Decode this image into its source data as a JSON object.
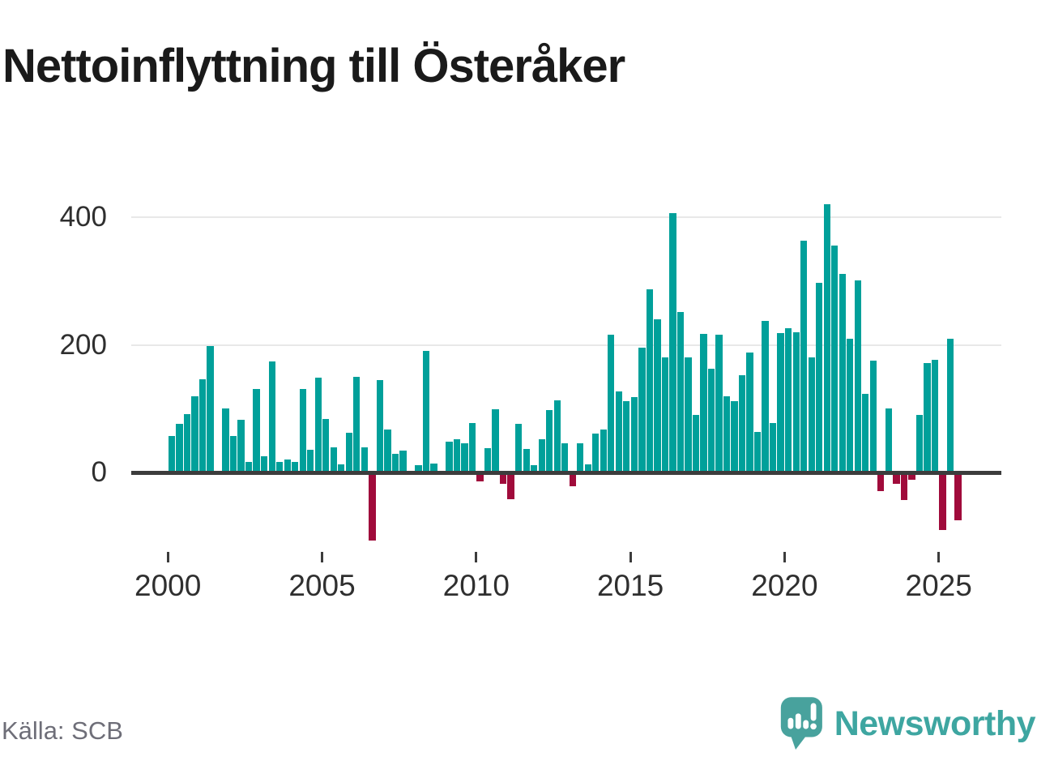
{
  "title": "Nettoinflyttning till Österåker",
  "source": "Källa: SCB",
  "branding": {
    "logo_text": "Newsworthy"
  },
  "colors": {
    "positive_bar": "#00A09A",
    "negative_bar": "#A00B3B",
    "axis": "#3C3C3C",
    "gridline": "#E8E8E8",
    "title_text": "#1A1A1A",
    "tick_text": "#2F2F2F",
    "source_text": "#6E6E78",
    "brand_teal": "#3EA6A1"
  },
  "chart_data": {
    "type": "bar",
    "title": "Nettoinflyttning till Österåker",
    "xlabel": "",
    "ylabel": "",
    "frequency": "quarterly",
    "start_period": "2000Q1",
    "end_period": "2025Q3",
    "grid": "horizontal",
    "legend_position": "none",
    "ylim": [
      -130,
      440
    ],
    "y_ticks": [
      {
        "value": 0,
        "label": "0"
      },
      {
        "value": 200,
        "label": "200"
      },
      {
        "value": 400,
        "label": "400"
      }
    ],
    "x_ticks": [
      {
        "value": 2000,
        "label": "2000"
      },
      {
        "value": 2005,
        "label": "2005"
      },
      {
        "value": 2010,
        "label": "2010"
      },
      {
        "value": 2015,
        "label": "2015"
      },
      {
        "value": 2020,
        "label": "2020"
      },
      {
        "value": 2025,
        "label": "2025"
      }
    ],
    "categories": [
      "2000Q1",
      "2000Q2",
      "2000Q3",
      "2000Q4",
      "2001Q1",
      "2001Q2",
      "2001Q3",
      "2001Q4",
      "2002Q1",
      "2002Q2",
      "2002Q3",
      "2002Q4",
      "2003Q1",
      "2003Q2",
      "2003Q3",
      "2003Q4",
      "2004Q1",
      "2004Q2",
      "2004Q3",
      "2004Q4",
      "2005Q1",
      "2005Q2",
      "2005Q3",
      "2005Q4",
      "2006Q1",
      "2006Q2",
      "2006Q3",
      "2006Q4",
      "2007Q1",
      "2007Q2",
      "2007Q3",
      "2007Q4",
      "2008Q1",
      "2008Q2",
      "2008Q3",
      "2008Q4",
      "2009Q1",
      "2009Q2",
      "2009Q3",
      "2009Q4",
      "2010Q1",
      "2010Q2",
      "2010Q3",
      "2010Q4",
      "2011Q1",
      "2011Q2",
      "2011Q3",
      "2011Q4",
      "2012Q1",
      "2012Q2",
      "2012Q3",
      "2012Q4",
      "2013Q1",
      "2013Q2",
      "2013Q3",
      "2013Q4",
      "2014Q1",
      "2014Q2",
      "2014Q3",
      "2014Q4",
      "2015Q1",
      "2015Q2",
      "2015Q3",
      "2015Q4",
      "2016Q1",
      "2016Q2",
      "2016Q3",
      "2016Q4",
      "2017Q1",
      "2017Q2",
      "2017Q3",
      "2017Q4",
      "2018Q1",
      "2018Q2",
      "2018Q3",
      "2018Q4",
      "2019Q1",
      "2019Q2",
      "2019Q3",
      "2019Q4",
      "2020Q1",
      "2020Q2",
      "2020Q3",
      "2020Q4",
      "2021Q1",
      "2021Q2",
      "2021Q3",
      "2021Q4",
      "2022Q1",
      "2022Q2",
      "2022Q3",
      "2022Q4",
      "2023Q1",
      "2023Q2",
      "2023Q3",
      "2023Q4",
      "2024Q1",
      "2024Q2",
      "2024Q3",
      "2024Q4",
      "2025Q1",
      "2025Q2",
      "2025Q3"
    ],
    "values": [
      57,
      76,
      92,
      120,
      146,
      198,
      0,
      100,
      57,
      82,
      17,
      131,
      25,
      174,
      17,
      21,
      16,
      131,
      36,
      149,
      84,
      40,
      13,
      62,
      150,
      40,
      -106,
      145,
      68,
      29,
      34,
      0,
      11,
      190,
      14,
      0,
      48,
      52,
      46,
      77,
      -14,
      38,
      99,
      -18,
      -42,
      76,
      37,
      11,
      52,
      98,
      113,
      46,
      -22,
      46,
      13,
      61,
      67,
      216,
      127,
      112,
      118,
      195,
      287,
      240,
      181,
      406,
      252,
      180,
      90,
      217,
      162,
      216,
      120,
      112,
      153,
      188,
      64,
      238,
      78,
      218,
      226,
      220,
      363,
      181,
      297,
      420,
      355,
      311,
      210,
      301,
      123,
      175,
      -29,
      100,
      -18,
      -43,
      -12,
      90,
      171,
      177,
      -90,
      210,
      -75
    ]
  }
}
